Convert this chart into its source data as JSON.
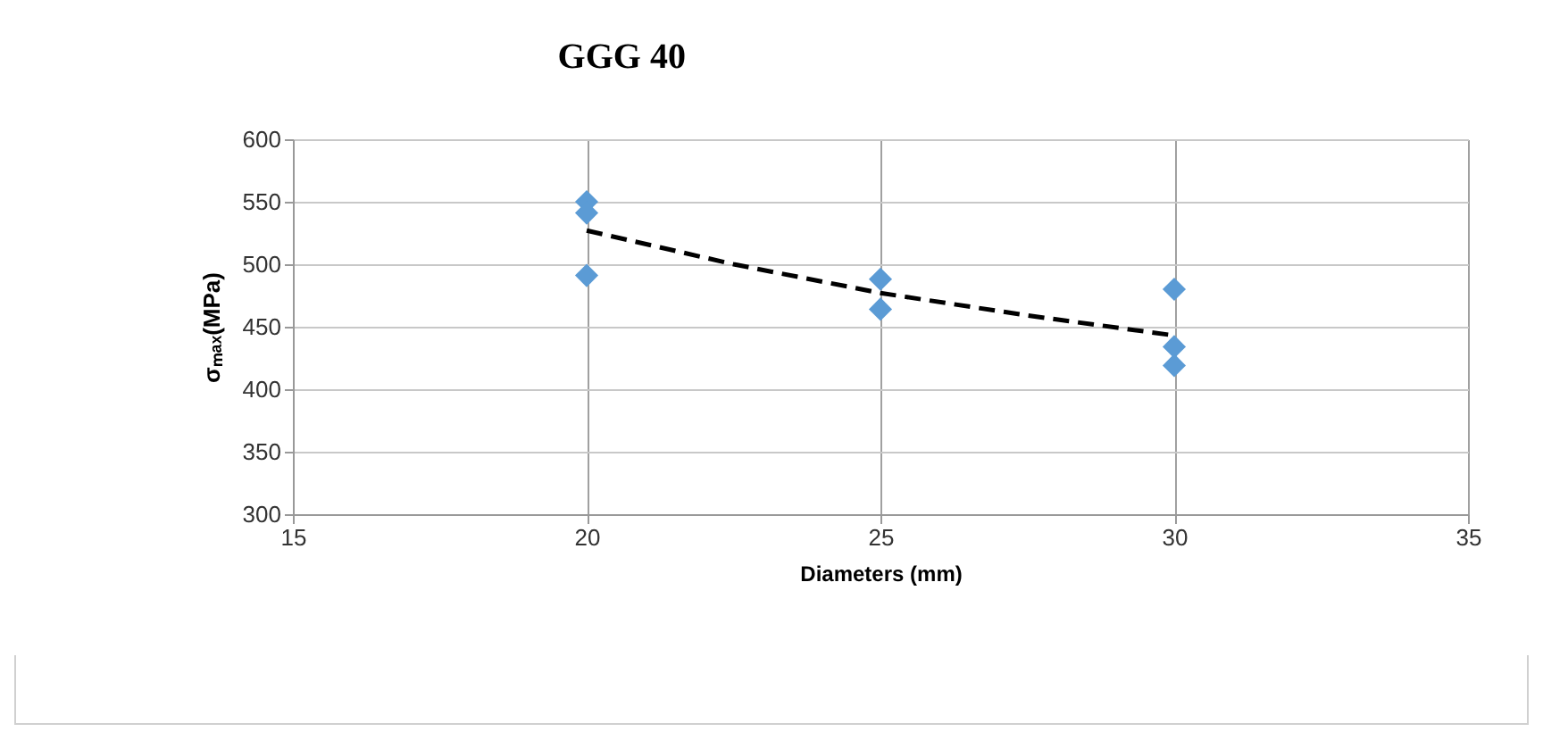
{
  "chart_data": {
    "type": "scatter",
    "title": "GGG 40",
    "xlabel": "Diameters (mm)",
    "ylabel": "σₘₐₓ(MPa)",
    "xlim": [
      15,
      35
    ],
    "xticks": [
      15,
      20,
      25,
      30,
      35
    ],
    "ylim": [
      300,
      600
    ],
    "yticks": [
      300,
      350,
      400,
      450,
      500,
      550,
      600
    ],
    "grid": true,
    "marker": "diamond",
    "series": [
      {
        "color": "#5b9bd5",
        "x": [
          20,
          20,
          20,
          25,
          25,
          30,
          30,
          30
        ],
        "values": [
          550,
          541,
          491,
          488,
          464,
          480,
          434,
          419
        ]
      },
      {
        "type": "line",
        "color": "#000000",
        "line_style": "dashed",
        "marker": "none",
        "x": [
          20,
          22.5,
          25,
          27.5,
          30
        ],
        "values": [
          527,
          500,
          477,
          459,
          443
        ]
      }
    ]
  }
}
